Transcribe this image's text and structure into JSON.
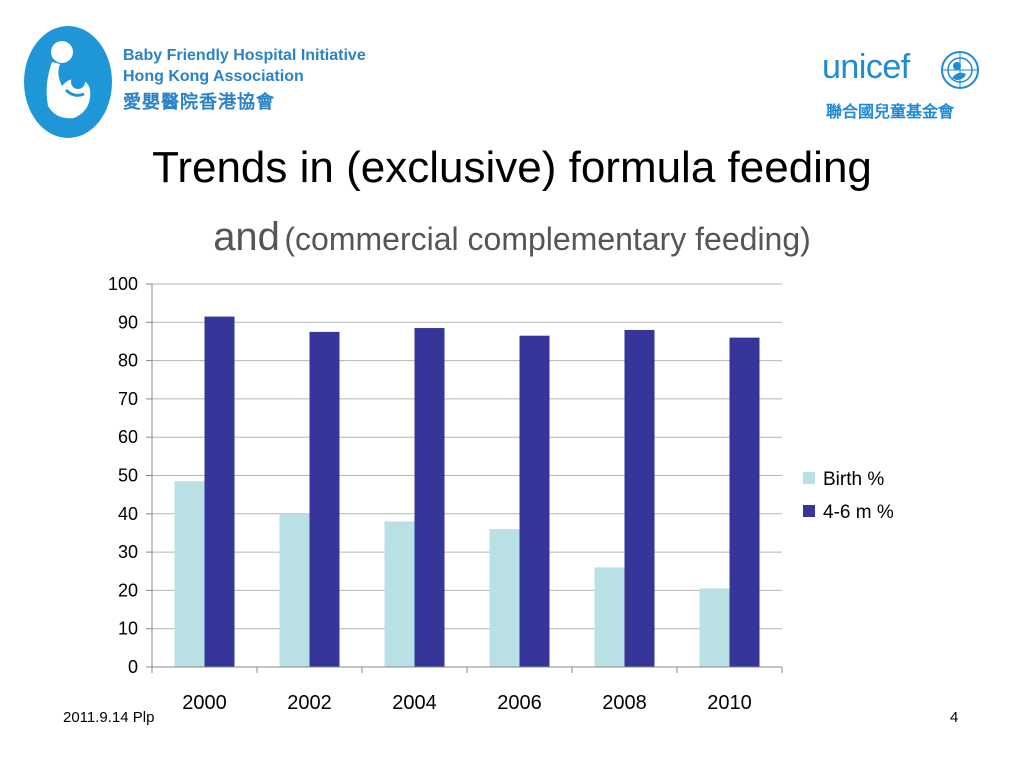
{
  "header": {
    "org_line1": "Baby Friendly Hospital Initiative",
    "org_line2": "Hong Kong Association",
    "org_line3": "愛嬰醫院香港協會",
    "unicef_word": "unicef",
    "unicef_chinese": "聯合國兒童基金會"
  },
  "title": {
    "line1": "Trends in (exclusive) formula feeding",
    "and": "and",
    "subtitle": "(commercial complementary feeding)"
  },
  "chart_data": {
    "type": "bar",
    "categories": [
      "2000",
      "2002",
      "2004",
      "2006",
      "2008",
      "2010"
    ],
    "series": [
      {
        "name": "Birth %",
        "values": [
          48.5,
          40,
          38,
          36,
          26,
          20.5
        ],
        "color": "#b9e0e4"
      },
      {
        "name": "4-6 m %",
        "values": [
          91.5,
          87.5,
          88.5,
          86.5,
          88,
          86
        ],
        "color": "#35359a"
      }
    ],
    "yticks": [
      "0",
      "10",
      "20",
      "30",
      "40",
      "50",
      "60",
      "70",
      "80",
      "90",
      "100"
    ],
    "ylim": [
      0,
      100
    ],
    "grid": true,
    "legend": "right"
  },
  "footer": {
    "date_text": "2011.9.14 Plp",
    "page_number": "4"
  },
  "colors": {
    "brand_blue": "#2a82c7",
    "unicef_blue": "#1f8ad6"
  },
  "icons": {
    "bfhi_logo": "mother-and-baby-icon",
    "unicef_emblem": "unicef-emblem-icon"
  }
}
